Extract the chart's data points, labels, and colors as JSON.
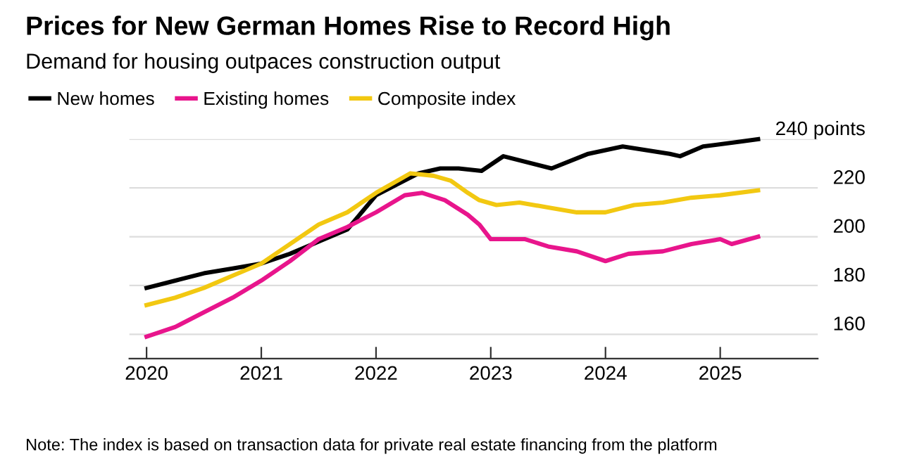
{
  "chart_data": {
    "type": "line",
    "title": "Prices for New German Homes Rise to Record High",
    "subtitle": "Demand for housing outpaces construction output",
    "annotations": [
      "Note: The index is based on transaction data for private real estate financing from the platform"
    ],
    "legend": "top left",
    "grid": "y",
    "marker": "none",
    "line_style": "solid",
    "xlim": [
      2019.85,
      2025.85
    ],
    "xticks": [
      2020,
      2021,
      2022,
      2023,
      2024,
      2025
    ],
    "ylim": [
      150,
      240
    ],
    "yticks": [
      160,
      180,
      200,
      220,
      {
        "value": 240,
        "label": "240 points"
      }
    ],
    "series": [
      {
        "name": "New homes",
        "color": "#000000",
        "x": [
          2020.0,
          2020.25,
          2020.5,
          2020.75,
          2021.0,
          2021.25,
          2021.5,
          2021.75,
          2022.0,
          2022.37,
          2022.56,
          2022.72,
          2022.92,
          2023.11,
          2023.53,
          2023.85,
          2024.15,
          2024.56,
          2024.65,
          2024.85,
          2025.18,
          2025.33
        ],
        "values": [
          179,
          182,
          185,
          187,
          189,
          193,
          198,
          203,
          217,
          226,
          228,
          228,
          227,
          233,
          228,
          234,
          237,
          234,
          233,
          237,
          239,
          240
        ]
      },
      {
        "name": "Existing homes",
        "color": "#e8158c",
        "x": [
          2020.0,
          2020.25,
          2020.5,
          2020.75,
          2021.0,
          2021.25,
          2021.5,
          2021.75,
          2022.0,
          2022.25,
          2022.4,
          2022.6,
          2022.8,
          2022.9,
          2023.0,
          2023.1,
          2023.3,
          2023.5,
          2023.75,
          2024.0,
          2024.2,
          2024.5,
          2024.75,
          2025.0,
          2025.1,
          2025.33
        ],
        "values": [
          159,
          163,
          169,
          175,
          182,
          190,
          199,
          204,
          210,
          217,
          218,
          215,
          209,
          205,
          199,
          199,
          199,
          196,
          194,
          190,
          193,
          194,
          197,
          199,
          197,
          200
        ]
      },
      {
        "name": "Composite index",
        "color": "#f2c811",
        "x": [
          2020.0,
          2020.25,
          2020.5,
          2020.75,
          2021.0,
          2021.25,
          2021.5,
          2021.75,
          2022.0,
          2022.3,
          2022.5,
          2022.65,
          2022.8,
          2022.9,
          2023.05,
          2023.25,
          2023.5,
          2023.75,
          2024.0,
          2024.25,
          2024.5,
          2024.75,
          2025.0,
          2025.33
        ],
        "values": [
          172,
          175,
          179,
          184,
          189,
          197,
          205,
          210,
          218,
          226,
          225,
          223,
          218,
          215,
          213,
          214,
          212,
          210,
          210,
          213,
          214,
          216,
          217,
          219
        ]
      }
    ]
  }
}
